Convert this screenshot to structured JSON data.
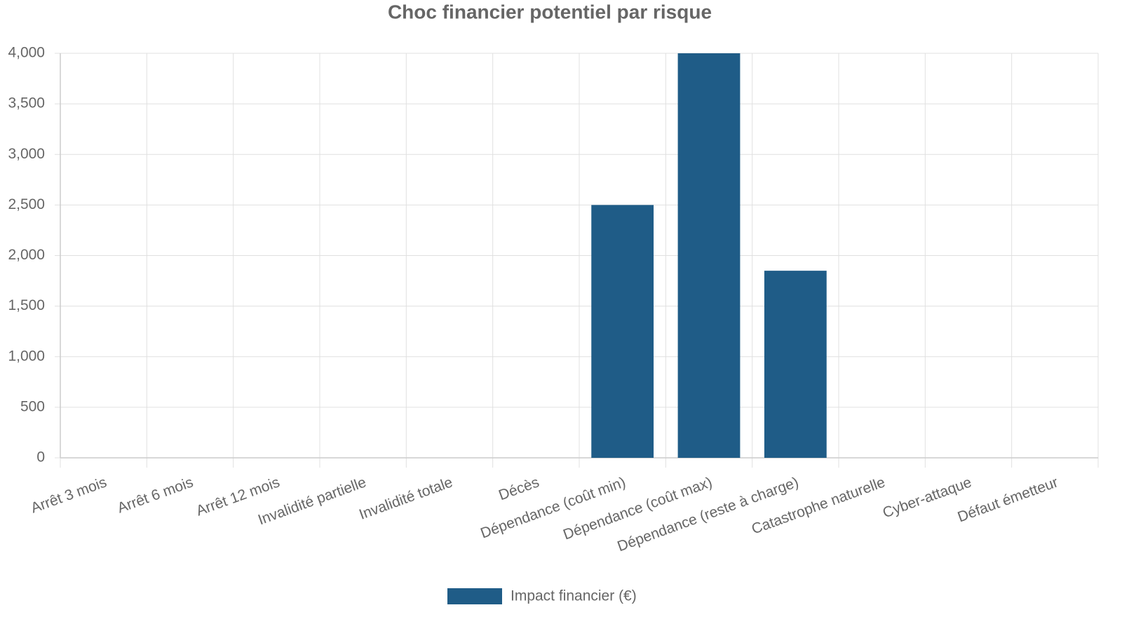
{
  "chart_data": {
    "type": "bar",
    "title": "Choc financier potentiel par risque",
    "categories": [
      "Arrêt 3 mois",
      "Arrêt 6 mois",
      "Arrêt 12 mois",
      "Invalidité partielle",
      "Invalidité totale",
      "Décès",
      "Dépendance (coût min)",
      "Dépendance (coût max)",
      "Dépendance (reste à charge)",
      "Catastrophe naturelle",
      "Cyber-attaque",
      "Défaut émetteur"
    ],
    "series": [
      {
        "name": "Impact financier (€)",
        "color": "#1f5c87",
        "values": [
          0,
          0,
          0,
          0,
          0,
          0,
          2500,
          4000,
          1850,
          0,
          0,
          0
        ]
      }
    ],
    "ylim": [
      0,
      4000
    ],
    "yticks": [
      0,
      500,
      {
        "value": 1000,
        "label": "1,000"
      },
      {
        "value": 1500,
        "label": "1,500"
      },
      {
        "value": 2000,
        "label": "2,000"
      },
      {
        "value": 2500,
        "label": "2,500"
      },
      {
        "value": 3000,
        "label": "3,000"
      },
      {
        "value": 3500,
        "label": "3,500"
      },
      {
        "value": 4000,
        "label": "4,000"
      }
    ],
    "grid": true,
    "legend": "bottom"
  }
}
